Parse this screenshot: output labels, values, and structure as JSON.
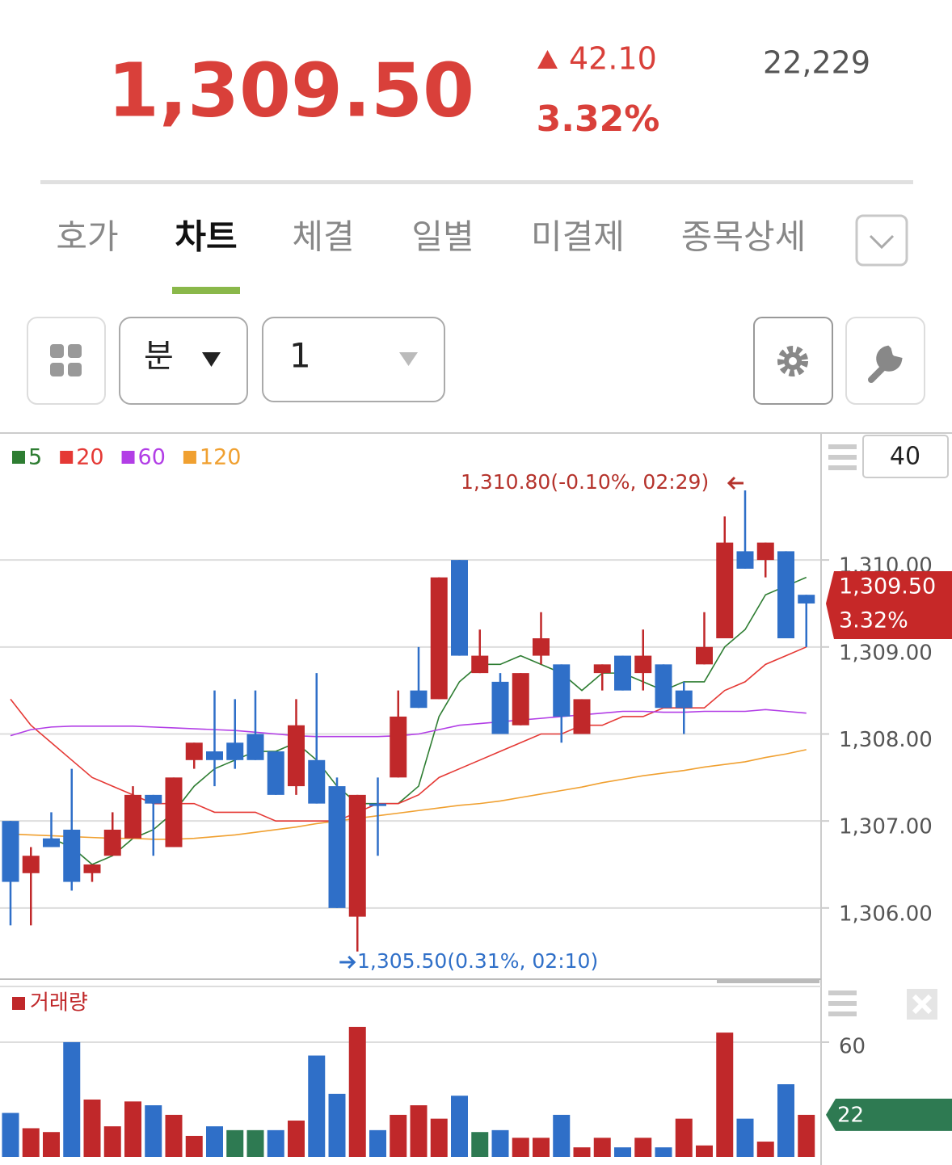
{
  "header": {
    "price": "1,309.50",
    "change": "42.10",
    "change_pct": "3.32%",
    "volume": "22,229"
  },
  "tabs": [
    "호가",
    "차트",
    "체결",
    "일별",
    "미결제",
    "종목상세"
  ],
  "active_tab": 1,
  "toolbar": {
    "period": "분",
    "interval": "1"
  },
  "chart_data": {
    "type": "candlestick",
    "candle_count": 40,
    "ylim": [
      1305.2,
      1311.45
    ],
    "yticks": [
      {
        "value": 1310,
        "label": "1,310.00"
      },
      {
        "value": 1309,
        "label": "1,309.00"
      },
      {
        "value": 1308,
        "label": "1,308.00"
      },
      {
        "value": 1307,
        "label": "1,307.00"
      },
      {
        "value": 1306,
        "label": "1,306.00"
      }
    ],
    "grid": true,
    "up_color": "#c0282a",
    "down_color": "#2f6fc8",
    "open": [
      1307.0,
      1306.4,
      1306.8,
      1306.9,
      1306.4,
      1306.6,
      1306.8,
      1307.3,
      1306.7,
      1307.7,
      1307.8,
      1307.9,
      1308.0,
      1307.8,
      1307.4,
      1307.7,
      1307.4,
      1305.9,
      1307.2,
      1307.5,
      1308.5,
      1308.4,
      1310.0,
      1308.7,
      1308.6,
      1308.1,
      1308.9,
      1308.8,
      1308.0,
      1308.7,
      1308.9,
      1308.7,
      1308.8,
      1308.5,
      1308.8,
      1309.1,
      1310.1,
      1310.0,
      1310.1,
      1309.6
    ],
    "high": [
      1307.0,
      1306.7,
      1307.1,
      1307.6,
      1306.5,
      1307.1,
      1307.4,
      1307.3,
      1307.5,
      1307.9,
      1308.5,
      1308.4,
      1308.5,
      1307.8,
      1308.4,
      1308.7,
      1307.5,
      1307.3,
      1307.5,
      1308.5,
      1309.0,
      1309.8,
      1310.0,
      1309.2,
      1308.7,
      1308.7,
      1309.4,
      1308.8,
      1308.4,
      1308.8,
      1308.9,
      1309.2,
      1308.8,
      1308.6,
      1309.4,
      1310.5,
      1310.8,
      1310.2,
      1310.1,
      1309.6
    ],
    "low": [
      1305.8,
      1305.8,
      1306.7,
      1306.2,
      1306.3,
      1306.6,
      1306.8,
      1306.6,
      1306.7,
      1307.6,
      1307.4,
      1307.6,
      1307.7,
      1307.3,
      1307.3,
      1307.2,
      1306.0,
      1305.5,
      1306.6,
      1307.5,
      1308.3,
      1308.4,
      1308.9,
      1308.7,
      1308.0,
      1308.1,
      1308.8,
      1307.9,
      1308.0,
      1308.5,
      1308.5,
      1308.5,
      1308.3,
      1308.0,
      1308.8,
      1309.1,
      1309.9,
      1309.8,
      1309.1,
      1309.0
    ],
    "close": [
      1306.3,
      1306.6,
      1306.7,
      1306.3,
      1306.5,
      1306.9,
      1307.3,
      1307.2,
      1307.5,
      1307.9,
      1307.7,
      1307.7,
      1307.7,
      1307.3,
      1308.1,
      1307.2,
      1306.0,
      1307.3,
      1307.2,
      1308.2,
      1308.3,
      1309.8,
      1308.9,
      1308.9,
      1308.0,
      1308.7,
      1309.1,
      1308.2,
      1308.4,
      1308.8,
      1308.5,
      1308.9,
      1308.3,
      1308.3,
      1309.0,
      1310.2,
      1309.9,
      1310.2,
      1309.1,
      1309.5
    ],
    "moving_averages": [
      {
        "name": "5",
        "color": "#2e7d32",
        "values": [
          null,
          null,
          1306.8,
          1306.7,
          1306.5,
          1306.6,
          1306.8,
          1306.9,
          1307.1,
          1307.4,
          1307.6,
          1307.7,
          1307.8,
          1307.8,
          1307.9,
          1307.7,
          1307.4,
          1307.2,
          1307.2,
          1307.2,
          1307.4,
          1308.2,
          1308.6,
          1308.8,
          1308.8,
          1308.9,
          1308.8,
          1308.7,
          1308.5,
          1308.7,
          1308.7,
          1308.6,
          1308.5,
          1308.6,
          1308.6,
          1309.0,
          1309.2,
          1309.6,
          1309.7,
          1309.8
        ]
      },
      {
        "name": "20",
        "color": "#e53935",
        "values": [
          1308.4,
          1308.1,
          1307.9,
          1307.7,
          1307.5,
          1307.4,
          1307.3,
          1307.2,
          1307.2,
          1307.2,
          1307.1,
          1307.1,
          1307.1,
          1307.0,
          1307.0,
          1307.0,
          1307.0,
          1307.1,
          1307.2,
          1307.2,
          1307.3,
          1307.5,
          1307.6,
          1307.7,
          1307.8,
          1307.9,
          1308.0,
          1308.0,
          1308.1,
          1308.1,
          1308.2,
          1308.2,
          1308.3,
          1308.3,
          1308.3,
          1308.5,
          1308.6,
          1308.8,
          1308.9,
          1309.0
        ]
      },
      {
        "name": "60",
        "color": "#b23ee6",
        "values": [
          1307.98,
          1308.05,
          1308.08,
          1308.09,
          1308.09,
          1308.09,
          1308.09,
          1308.08,
          1308.07,
          1308.06,
          1308.05,
          1308.04,
          1308.02,
          1308.0,
          1307.98,
          1307.97,
          1307.97,
          1307.97,
          1307.97,
          1307.98,
          1308.0,
          1308.05,
          1308.1,
          1308.12,
          1308.14,
          1308.16,
          1308.18,
          1308.2,
          1308.22,
          1308.24,
          1308.26,
          1308.26,
          1308.25,
          1308.25,
          1308.26,
          1308.26,
          1308.26,
          1308.28,
          1308.26,
          1308.24
        ]
      },
      {
        "name": "120",
        "color": "#f0a030",
        "values": [
          1306.85,
          1306.84,
          1306.83,
          1306.82,
          1306.81,
          1306.8,
          1306.8,
          1306.79,
          1306.79,
          1306.8,
          1306.82,
          1306.84,
          1306.87,
          1306.9,
          1306.93,
          1306.97,
          1307.0,
          1307.03,
          1307.06,
          1307.09,
          1307.12,
          1307.15,
          1307.18,
          1307.2,
          1307.23,
          1307.27,
          1307.31,
          1307.35,
          1307.39,
          1307.44,
          1307.48,
          1307.52,
          1307.55,
          1307.58,
          1307.62,
          1307.65,
          1307.68,
          1307.73,
          1307.77,
          1307.82
        ]
      }
    ],
    "high_annotation": "1,310.80(-0.10%, 02:29)",
    "low_annotation": "1,305.50(0.31%, 02:10)",
    "last_price": {
      "price": "1,309.50",
      "change_pct": "3.32%",
      "color": "#c62828"
    },
    "volume": {
      "name": "거래량",
      "color": "#c0282a",
      "ylim": [
        0,
        88.7
      ],
      "yticks": [
        60
      ],
      "values": [
        23,
        15,
        13,
        60,
        30,
        16,
        29,
        27,
        22,
        11,
        16,
        14,
        14,
        14,
        19,
        53,
        33,
        68,
        14,
        22,
        27,
        20,
        32,
        13,
        14,
        10,
        10,
        22,
        5,
        10,
        5,
        10,
        5,
        20,
        6,
        65,
        20,
        8,
        38,
        22
      ],
      "colors": [
        "#2f6fc8",
        "#c0282a",
        "#c0282a",
        "#2f6fc8",
        "#c0282a",
        "#c0282a",
        "#c0282a",
        "#2f6fc8",
        "#c0282a",
        "#c0282a",
        "#2f6fc8",
        "#2e7a52",
        "#2e7a52",
        "#2f6fc8",
        "#c0282a",
        "#2f6fc8",
        "#2f6fc8",
        "#c0282a",
        "#2f6fc8",
        "#c0282a",
        "#c0282a",
        "#c0282a",
        "#2f6fc8",
        "#2e7a52",
        "#2f6fc8",
        "#c0282a",
        "#c0282a",
        "#2f6fc8",
        "#c0282a",
        "#c0282a",
        "#2f6fc8",
        "#c0282a",
        "#2f6fc8",
        "#c0282a",
        "#c0282a",
        "#c0282a",
        "#2f6fc8",
        "#c0282a",
        "#2f6fc8",
        "#c0282a"
      ],
      "last_label": "22",
      "last_color": "#2e7a52"
    }
  }
}
